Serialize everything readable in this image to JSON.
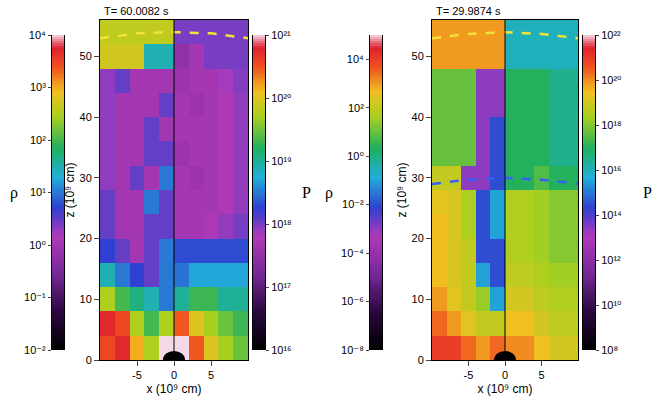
{
  "chart_data": [
    {
      "type": "heatmap",
      "title": "T= 60.0082 s",
      "x_label": "x (10⁹ cm)",
      "y_label": "z (10⁹ cm)",
      "xlim": [
        -10,
        10
      ],
      "ylim": [
        0,
        56
      ],
      "xticks": [
        -5,
        0,
        5
      ],
      "yticks": [
        0,
        10,
        20,
        30,
        40,
        50
      ],
      "y": [
        2,
        6,
        10,
        14,
        18,
        22,
        26,
        30,
        34,
        38,
        42,
        46,
        50,
        54
      ],
      "halves": [
        {
          "colorbar_title": "ρ",
          "side": "left",
          "x": [
            -9,
            -7,
            -5,
            -3,
            -1
          ],
          "colorbar_range": [
            0.01,
            10000
          ],
          "colorbar_ticks": [
            {
              "value": 0.01,
              "label": "10⁻²"
            },
            {
              "value": 0.1,
              "label": "10⁻¹"
            },
            {
              "value": 1,
              "label": "10⁰"
            },
            {
              "value": 10,
              "label": "10¹"
            },
            {
              "value": 100,
              "label": "10²"
            },
            {
              "value": 1000,
              "label": "10³"
            },
            {
              "value": 10000,
              "label": "10⁴"
            }
          ],
          "cells": [
            [
              3000.0,
              5000.0,
              1000.0,
              300.0,
              10000.0
            ],
            [
              5000.0,
              3000.0,
              300.0,
              100.0,
              300.0
            ],
            [
              300.0,
              100.0,
              50.0,
              30.0,
              10.0
            ],
            [
              30.0,
              10.0,
              5.0,
              3.0,
              10.0
            ],
            [
              5.0,
              3.0,
              1.0,
              3.0,
              10.0
            ],
            [
              3.0,
              1.0,
              1.0,
              3.0,
              3.0
            ],
            [
              3.0,
              1.0,
              1.0,
              10.0,
              3.0
            ],
            [
              2.0,
              1.0,
              3.0,
              1.0,
              10.0
            ],
            [
              2.0,
              1.0,
              1.0,
              3.0,
              3.0
            ],
            [
              2.0,
              1.0,
              1.0,
              3.0,
              1.0
            ],
            [
              2.0,
              1.0,
              1.0,
              1.0,
              3.0
            ],
            [
              2.0,
              3.0,
              1.0,
              1.0,
              1.0
            ],
            [
              500.0,
              500.0,
              500.0,
              30.0,
              30.0
            ],
            [
              400.0,
              400.0,
              400.0,
              400.0,
              400.0
            ]
          ]
        },
        {
          "colorbar_title": "P",
          "side": "right",
          "x": [
            1,
            3,
            5,
            7,
            9
          ],
          "colorbar_range": [
            1e+16,
            1e+21
          ],
          "colorbar_ticks": [
            {
              "value": 1e+16,
              "label": "10¹⁶"
            },
            {
              "value": 1e+17,
              "label": "10¹⁷"
            },
            {
              "value": 1e+18,
              "label": "10¹⁸"
            },
            {
              "value": 1e+19,
              "label": "10¹⁹"
            },
            {
              "value": 1e+20,
              "label": "10²⁰"
            },
            {
              "value": 1e+21,
              "label": "10²¹"
            }
          ],
          "cells": [
            [
              1e+21,
              3e+20,
              1e+20,
              5e+19,
              3e+19
            ],
            [
              3e+20,
              1e+20,
              5e+19,
              3e+19,
              2e+19
            ],
            [
              1e+19,
              2e+19,
              2e+19,
              1e+19,
              1e+19
            ],
            [
              3e+18,
              5e+18,
              5e+18,
              5e+18,
              5e+18
            ],
            [
              2e+18,
              2e+18,
              2e+18,
              2e+18,
              2e+18
            ],
            [
              5e+17,
              5e+17,
              6e+17,
              8e+17,
              1e+18
            ],
            [
              5e+17,
              5e+17,
              5e+17,
              6e+17,
              8e+17
            ],
            [
              5e+17,
              4e+17,
              5e+17,
              6e+17,
              8e+17
            ],
            [
              4e+17,
              5e+17,
              5e+17,
              6e+17,
              8e+17
            ],
            [
              5e+17,
              5e+17,
              5e+17,
              6e+17,
              8e+17
            ],
            [
              5e+17,
              4e+17,
              5e+17,
              6e+17,
              8e+17
            ],
            [
              4e+17,
              5e+17,
              5e+17,
              7e+17,
              9e+17
            ],
            [
              3e+17,
              5e+17,
              1e+18,
              1e+18,
              1e+18
            ],
            [
              1e+18,
              1e+18,
              1e+18,
              1e+18,
              1e+18
            ]
          ]
        }
      ],
      "curves": [
        {
          "color": "#f2e33a",
          "line_style": "dash",
          "x": [
            -10,
            -5,
            0,
            5,
            10
          ],
          "y": [
            53,
            53.8,
            54,
            53.8,
            53
          ]
        }
      ],
      "core": {
        "radius": 1.5,
        "color": "#000000"
      }
    },
    {
      "type": "heatmap",
      "title": "T= 29.9874 s",
      "x_label": "x (10⁹ cm)",
      "y_label": "z (10⁹ cm)",
      "xlim": [
        -10,
        10
      ],
      "ylim": [
        0,
        56
      ],
      "xticks": [
        -5,
        0,
        5
      ],
      "yticks": [
        0,
        10,
        20,
        30,
        40,
        50
      ],
      "y": [
        2,
        6,
        10,
        14,
        18,
        22,
        26,
        30,
        34,
        38,
        42,
        46,
        50,
        54
      ],
      "halves": [
        {
          "colorbar_title": "ρ",
          "side": "left",
          "x": [
            -9,
            -7,
            -5,
            -3,
            -1
          ],
          "colorbar_range": [
            1e-08,
            100000.0
          ],
          "colorbar_ticks": [
            {
              "value": 1e-08,
              "label": "10⁻⁸"
            },
            {
              "value": 1e-06,
              "label": "10⁻⁶"
            },
            {
              "value": 0.0001,
              "label": "10⁻⁴"
            },
            {
              "value": 0.01,
              "label": "10⁻²"
            },
            {
              "value": 1,
              "label": "10⁰"
            },
            {
              "value": 100,
              "label": "10²"
            },
            {
              "value": 10000,
              "label": "10⁴"
            }
          ],
          "cells": [
            [
              10000.0,
              10000.0,
              3000.0,
              1000.0,
              3000.0
            ],
            [
              3000.0,
              1000.0,
              300.0,
              100.0,
              100.0
            ],
            [
              1000.0,
              300.0,
              100.0,
              30.0,
              0.1
            ],
            [
              500.0,
              200.0,
              100.0,
              0.1,
              0.01
            ],
            [
              500.0,
              200.0,
              100.0,
              0.01,
              0.01
            ],
            [
              500.0,
              200.0,
              50.0,
              0.01,
              0.1
            ],
            [
              300.0,
              200.0,
              50.0,
              0.01,
              0.1
            ],
            [
              100.0,
              100.0,
              0.001,
              0.001,
              0.01
            ],
            [
              10.0,
              10.0,
              10.0,
              0.001,
              0.01
            ],
            [
              10.0,
              10.0,
              10.0,
              0.001,
              0.01
            ],
            [
              10.0,
              10.0,
              10.0,
              0.001,
              0.001
            ],
            [
              10.0,
              10.0,
              10.0,
              0.001,
              0.001
            ],
            [
              1000.0,
              1000.0,
              1000.0,
              1000.0,
              1000.0
            ],
            [
              1000.0,
              1000.0,
              1000.0,
              1000.0,
              1000.0
            ]
          ]
        },
        {
          "colorbar_title": "P",
          "side": "right",
          "x": [
            1,
            3,
            5,
            7,
            9
          ],
          "colorbar_range": [
            100000000.0,
            1e+22
          ],
          "colorbar_ticks": [
            {
              "value": 100000000.0,
              "label": "10⁸"
            },
            {
              "value": 10000000000.0,
              "label": "10¹⁰"
            },
            {
              "value": 1000000000000.0,
              "label": "10¹²"
            },
            {
              "value": 100000000000000.0,
              "label": "10¹⁴"
            },
            {
              "value": 1e+16,
              "label": "10¹⁶"
            },
            {
              "value": 1e+18,
              "label": "10¹⁸"
            },
            {
              "value": 1e+20,
              "label": "10²⁰"
            },
            {
              "value": 1e+22,
              "label": "10²²"
            }
          ],
          "cells": [
            [
              1e+20,
              1e+20,
              3e+19,
              1e+19,
              1e+19
            ],
            [
              3e+19,
              3e+19,
              1e+19,
              5e+18,
              5e+18
            ],
            [
              1e+19,
              1e+19,
              5e+18,
              3e+18,
              3e+18
            ],
            [
              5e+18,
              5e+18,
              3e+18,
              2e+18,
              2e+18
            ],
            [
              3e+18,
              3e+18,
              2e+18,
              1e+18,
              1e+18
            ],
            [
              3e+18,
              3e+18,
              2e+18,
              1e+18,
              1e+18
            ],
            [
              3e+18,
              3e+18,
              2e+18,
              1e+18,
              1e+18
            ],
            [
              1e+17,
              1e+17,
              3e+17,
              1e+17,
              1e+17
            ],
            [
              1e+17,
              1e+17,
              1e+17,
              3e+16,
              3e+16
            ],
            [
              1e+17,
              1e+17,
              1e+17,
              3e+16,
              3e+16
            ],
            [
              1e+17,
              1e+17,
              1e+17,
              3e+16,
              3e+16
            ],
            [
              1e+17,
              1e+17,
              1e+17,
              3e+16,
              3e+16
            ],
            [
              1e+16,
              1e+16,
              1e+16,
              1e+16,
              1e+16
            ],
            [
              1e+16,
              1e+16,
              1e+16,
              1e+16,
              1e+16
            ]
          ]
        }
      ],
      "curves": [
        {
          "color": "#f2e33a",
          "line_style": "dash",
          "x": [
            -10,
            -5,
            0,
            5,
            10
          ],
          "y": [
            53,
            53.7,
            54,
            53.7,
            53
          ]
        },
        {
          "color": "#3a5ef2",
          "line_style": "dash",
          "x": [
            -10,
            -5,
            0,
            5,
            10
          ],
          "y": [
            29,
            29.7,
            30,
            29.7,
            29
          ]
        }
      ],
      "core": {
        "radius": 1.5,
        "color": "#000000"
      }
    }
  ]
}
